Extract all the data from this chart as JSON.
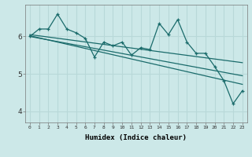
{
  "xlabel": "Humidex (Indice chaleur)",
  "background_color": "#cce8e8",
  "grid_color": "#b8d8d8",
  "line_color": "#1a6b6b",
  "xlim": [
    -0.5,
    23.5
  ],
  "ylim": [
    3.7,
    6.85
  ],
  "xticks": [
    0,
    1,
    2,
    3,
    4,
    5,
    6,
    7,
    8,
    9,
    10,
    11,
    12,
    13,
    14,
    15,
    16,
    17,
    18,
    19,
    20,
    21,
    22,
    23
  ],
  "yticks": [
    4,
    5,
    6
  ],
  "series1_x": [
    0,
    1,
    2,
    3,
    4,
    5,
    6,
    7,
    8,
    9,
    10,
    11,
    12,
    13,
    14,
    15,
    16,
    17,
    18,
    19,
    20,
    21,
    22,
    23
  ],
  "series1_y": [
    6.0,
    6.2,
    6.2,
    6.6,
    6.2,
    6.1,
    5.95,
    5.45,
    5.85,
    5.75,
    5.85,
    5.5,
    5.7,
    5.65,
    6.35,
    6.05,
    6.45,
    5.85,
    5.55,
    5.55,
    5.2,
    4.82,
    4.2,
    4.55
  ],
  "trend1_x": [
    0,
    23
  ],
  "trend1_y": [
    6.05,
    5.3
  ],
  "trend2_x": [
    0,
    23
  ],
  "trend2_y": [
    6.02,
    4.72
  ],
  "trend3_x": [
    0,
    23
  ],
  "trend3_y": [
    6.0,
    4.95
  ]
}
